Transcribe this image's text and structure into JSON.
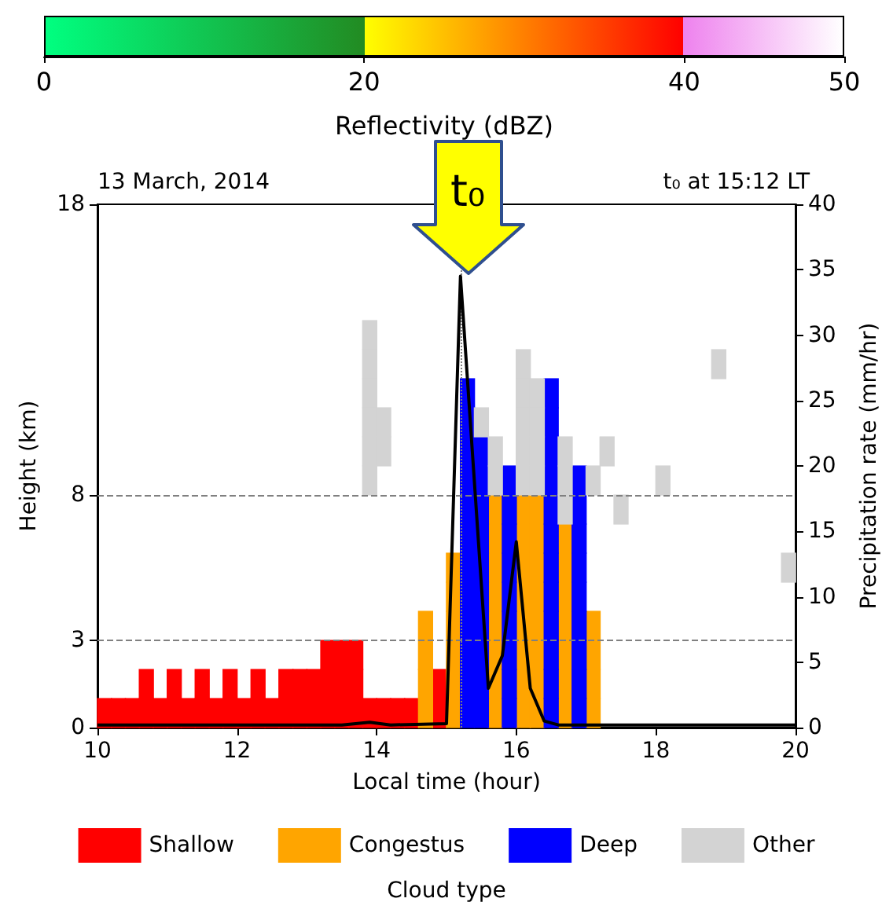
{
  "chart_data": {
    "type": "scatter",
    "title": "13 March, 2014",
    "xlabel": "Local time (hour)",
    "ylabel": "Height (km)",
    "y2label": "Precipitation rate (mm/hr)",
    "legend_title": "Cloud type",
    "x2label": "Reflectivity (dBZ)",
    "x2lim": [
      0,
      50
    ],
    "x2ticks": [
      0,
      20,
      40,
      50
    ],
    "annotations": [
      "t₀ at 15:12 LT",
      "t₀"
    ],
    "xlim": [
      10,
      20
    ],
    "xticks": [
      10,
      12,
      14,
      16,
      18,
      20
    ],
    "ylim": [
      0,
      18
    ],
    "yticks": [
      0,
      3,
      8,
      18
    ],
    "y2lim": [
      0,
      40
    ],
    "y2ticks": [
      0,
      5,
      10,
      15,
      20,
      25,
      30,
      35,
      40
    ],
    "grid": false,
    "legend": "bottom",
    "marker": "square",
    "ref_lines": [
      {
        "axis": "y",
        "value": 3,
        "label": null,
        "color": "#808080",
        "line_style": "dashed"
      },
      {
        "axis": "y",
        "value": 8,
        "label": null,
        "color": "#808080",
        "line_style": "dashed"
      },
      {
        "axis": "x",
        "value": 15.2,
        "label": null,
        "color": "#808080",
        "line_style": "dotted"
      }
    ],
    "series": [
      {
        "name": "Shallow",
        "color": "#ff0000",
        "x": [
          13.3,
          13.5,
          13.7,
          10.7,
          11.1,
          11.5,
          11.9,
          12.3,
          12.7,
          12.9,
          13.1,
          13.3,
          13.5,
          13.7,
          14.9,
          10.1,
          10.3,
          10.5,
          10.7,
          10.9,
          11.1,
          11.3,
          11.5,
          11.7,
          11.9,
          12.1,
          12.3,
          12.5,
          12.7,
          12.9,
          13.1,
          13.3,
          13.5,
          13.7,
          13.9,
          14.1,
          14.3,
          14.5,
          14.9
        ],
        "values": [
          2.5,
          2.5,
          2.5,
          1.5,
          1.5,
          1.5,
          1.5,
          1.5,
          1.5,
          1.5,
          1.5,
          1.5,
          1.5,
          1.5,
          1.5,
          0.5,
          0.5,
          0.5,
          0.5,
          0.5,
          0.5,
          0.5,
          0.5,
          0.5,
          0.5,
          0.5,
          0.5,
          0.5,
          0.5,
          0.5,
          0.5,
          0.5,
          0.5,
          0.5,
          0.5,
          0.5,
          0.5,
          0.5,
          0.5
        ]
      },
      {
        "name": "Congestus",
        "color": "#ffa500",
        "x": [
          15.7,
          16.1,
          16.3,
          15.7,
          16.1,
          16.3,
          16.7,
          15.1,
          15.7,
          16.1,
          16.3,
          16.7,
          15.1,
          15.7,
          16.1,
          16.3,
          16.7,
          14.7,
          15.1,
          15.7,
          16.1,
          16.3,
          16.7,
          17.1,
          14.7,
          15.1,
          15.7,
          16.1,
          16.3,
          16.7,
          17.1,
          14.7,
          15.1,
          15.7,
          16.1,
          16.3,
          16.7,
          17.1,
          14.7,
          15.1,
          15.7,
          16.1,
          16.3,
          16.7,
          17.1
        ],
        "values": [
          7.5,
          7.5,
          7.5,
          6.5,
          6.5,
          6.5,
          6.5,
          5.5,
          5.5,
          5.5,
          5.5,
          5.5,
          4.5,
          4.5,
          4.5,
          4.5,
          4.5,
          3.5,
          3.5,
          3.5,
          3.5,
          3.5,
          3.5,
          3.5,
          2.5,
          2.5,
          2.5,
          2.5,
          2.5,
          2.5,
          2.5,
          1.5,
          1.5,
          1.5,
          1.5,
          1.5,
          1.5,
          1.5,
          0.5,
          0.5,
          0.5,
          0.5,
          0.5,
          0.5,
          0.5
        ]
      },
      {
        "name": "Deep",
        "color": "#0000ff",
        "x": [
          15.3,
          16.5,
          15.3,
          16.5,
          15.3,
          15.5,
          16.5,
          15.3,
          15.5,
          15.9,
          16.5,
          16.9,
          15.3,
          15.5,
          15.9,
          16.5,
          16.9,
          15.3,
          15.5,
          15.9,
          16.5,
          16.9,
          15.3,
          15.5,
          15.9,
          16.5,
          16.9,
          15.3,
          15.5,
          15.9,
          16.5,
          16.9,
          15.3,
          15.5,
          15.9,
          16.5,
          16.9,
          15.3,
          15.5,
          15.9,
          16.5,
          16.9,
          15.3,
          15.5,
          15.9,
          16.5,
          16.9,
          15.3,
          15.5,
          15.9,
          16.5,
          16.9
        ],
        "values": [
          11.5,
          11.5,
          10.5,
          10.5,
          9.5,
          9.5,
          9.5,
          8.5,
          8.5,
          8.5,
          8.5,
          8.5,
          7.5,
          7.5,
          7.5,
          7.5,
          7.5,
          6.5,
          6.5,
          6.5,
          6.5,
          6.5,
          5.5,
          5.5,
          5.5,
          5.5,
          5.5,
          4.5,
          4.5,
          4.5,
          4.5,
          4.5,
          3.5,
          3.5,
          3.5,
          3.5,
          3.5,
          2.5,
          2.5,
          2.5,
          2.5,
          2.5,
          1.5,
          1.5,
          1.5,
          1.5,
          1.5,
          0.5,
          0.5,
          0.5,
          0.5,
          0.5
        ]
      },
      {
        "name": "Other",
        "color": "#d3d3d3",
        "x": [
          13.9,
          13.9,
          16.1,
          18.9,
          13.9,
          16.1,
          16.3,
          13.9,
          14.1,
          15.5,
          16.1,
          16.3,
          13.9,
          14.1,
          15.7,
          16.1,
          16.3,
          16.7,
          17.3,
          13.9,
          15.7,
          16.1,
          16.3,
          16.7,
          17.1,
          18.1,
          16.7,
          17.5,
          19.9
        ],
        "values": [
          13.5,
          12.5,
          12.5,
          12.5,
          11.5,
          11.5,
          11.5,
          10.5,
          10.5,
          10.5,
          10.5,
          10.5,
          9.5,
          9.5,
          9.5,
          9.5,
          9.5,
          9.5,
          9.5,
          8.5,
          8.5,
          8.5,
          8.5,
          8.5,
          8.5,
          8.5,
          7.5,
          7.5,
          5.5
        ]
      },
      {
        "type": "line",
        "axis": "y2",
        "color": "#000000",
        "marker": "none",
        "x": [
          10,
          13.5,
          13.9,
          14.2,
          15.0,
          15.2,
          15.6,
          15.8,
          16.0,
          16.2,
          16.4,
          16.6,
          20
        ],
        "values": [
          0.2,
          0.2,
          0.4,
          0.2,
          0.3,
          34.5,
          3,
          5.5,
          14.2,
          3,
          0.5,
          0.2,
          0.2
        ]
      }
    ]
  }
}
